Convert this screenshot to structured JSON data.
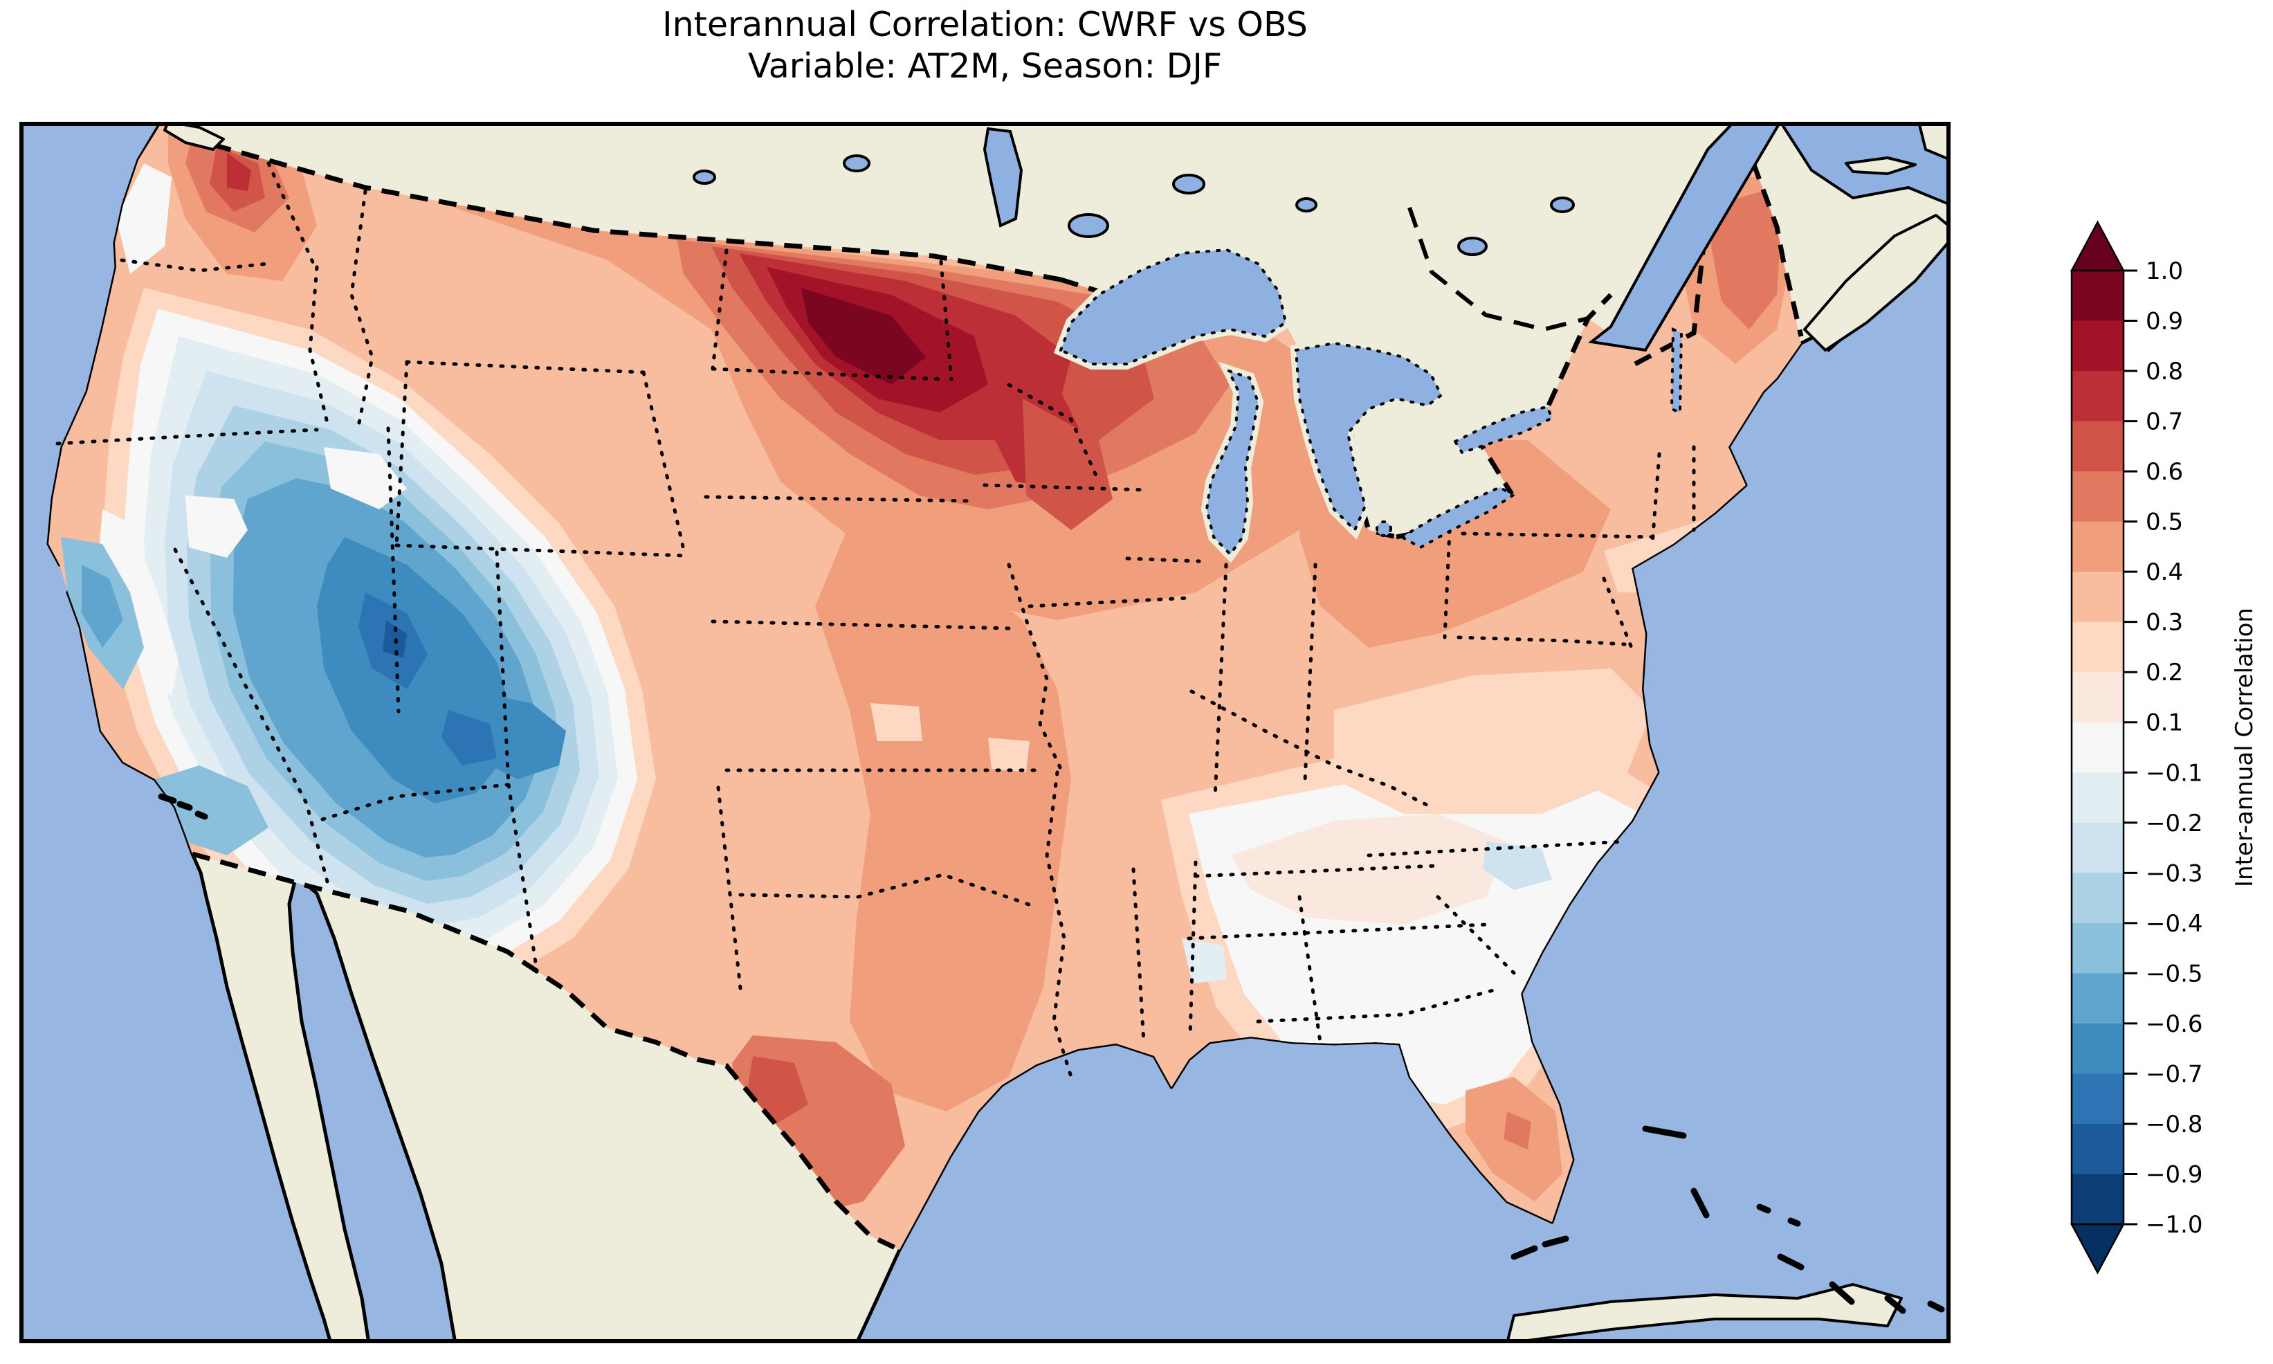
{
  "figure": {
    "title_line1": "Interannual Correlation: CWRF vs OBS",
    "title_line2": "Variable: AT2M, Season: DJF"
  },
  "colorbar": {
    "label": "Inter-annual Correlation",
    "tick_labels": [
      "1.0",
      "0.9",
      "0.8",
      "0.7",
      "0.6",
      "0.5",
      "0.4",
      "0.3",
      "0.2",
      "0.1",
      "−0.1",
      "−0.2",
      "−0.3",
      "−0.4",
      "−0.5",
      "−0.6",
      "−0.7",
      "−0.8",
      "−0.9",
      "−1.0"
    ],
    "segment_colors_top_to_bottom": [
      "#7b0622",
      "#a21328",
      "#bd2f36",
      "#d05548",
      "#e17961",
      "#f19e7c",
      "#f8bc9f",
      "#fdd8c3",
      "#fae8de",
      "#f7f7f7",
      "#e3eef3",
      "#cee3ef",
      "#add2e6",
      "#8ac0db",
      "#60a5cd",
      "#3e8cbf",
      "#2c74b3",
      "#1b5b9c",
      "#0c3e75"
    ],
    "over_color": "#67001f",
    "under_color": "#053061",
    "extend": "both"
  },
  "map_colors": {
    "ocean": "#97b6e2",
    "land": "#eeecda",
    "lake": "#8fb1e2",
    "coastline": "#000000",
    "borders": "#000000"
  },
  "chart_data": {
    "type": "heatmap",
    "title": "Interannual Correlation: CWRF vs OBS — Variable: AT2M, Season: DJF",
    "comparison": "CWRF model vs OBS observations",
    "variable": "AT2M",
    "season": "DJF",
    "region_shown": "Contiguous United States (CWRF domain), with Canada/Mexico masked",
    "colormap": "RdBu_r",
    "levels": [
      -1.0,
      -0.9,
      -0.8,
      -0.7,
      -0.6,
      -0.5,
      -0.4,
      -0.3,
      -0.2,
      -0.1,
      0.1,
      0.2,
      0.3,
      0.4,
      0.5,
      0.6,
      0.7,
      0.8,
      0.9,
      1.0
    ],
    "colorbar_range": [
      -1.0,
      1.0
    ],
    "legend_position": "right",
    "regional_values": [
      {
        "region": "Western Washington / Puget Sound",
        "correlation": 0.55
      },
      {
        "region": "Oregon coast",
        "correlation": -0.05
      },
      {
        "region": "California Central Valley",
        "correlation": -0.1
      },
      {
        "region": "California coast",
        "correlation": -0.45
      },
      {
        "region": "Great Basin (NV/UT) core",
        "correlation": -0.75
      },
      {
        "region": "Four Corners / N Arizona / W New Mexico",
        "correlation": -0.65
      },
      {
        "region": "Southern New Mexico",
        "correlation": 0.0
      },
      {
        "region": "Northern Idaho / W Montana",
        "correlation": 0.35
      },
      {
        "region": "Eastern Montana / W North Dakota",
        "correlation": 0.85
      },
      {
        "region": "Northern Plains (ND/SD/MN)",
        "correlation": 0.65
      },
      {
        "region": "Western Wisconsin",
        "correlation": 0.6
      },
      {
        "region": "Upper Midwest (IA/IL/MO)",
        "correlation": 0.45
      },
      {
        "region": "Michigan / Great Lakes",
        "correlation": 0.4
      },
      {
        "region": "Ohio Valley / NY / PA",
        "correlation": 0.35
      },
      {
        "region": "Northern Maine",
        "correlation": 0.45
      },
      {
        "region": "Mid-Atlantic / S New England",
        "correlation": 0.2
      },
      {
        "region": "Southeast (VA/Carolinas/GA/AL/TN)",
        "correlation": 0.05
      },
      {
        "region": "Central South Carolina pocket",
        "correlation": -0.15
      },
      {
        "region": "Florida peninsula",
        "correlation": 0.3
      },
      {
        "region": "Gulf Coast (LA/MS)",
        "correlation": 0.2
      },
      {
        "region": "Central Texas",
        "correlation": 0.55
      },
      {
        "region": "Oklahoma / Kansas",
        "correlation": 0.3
      }
    ]
  }
}
